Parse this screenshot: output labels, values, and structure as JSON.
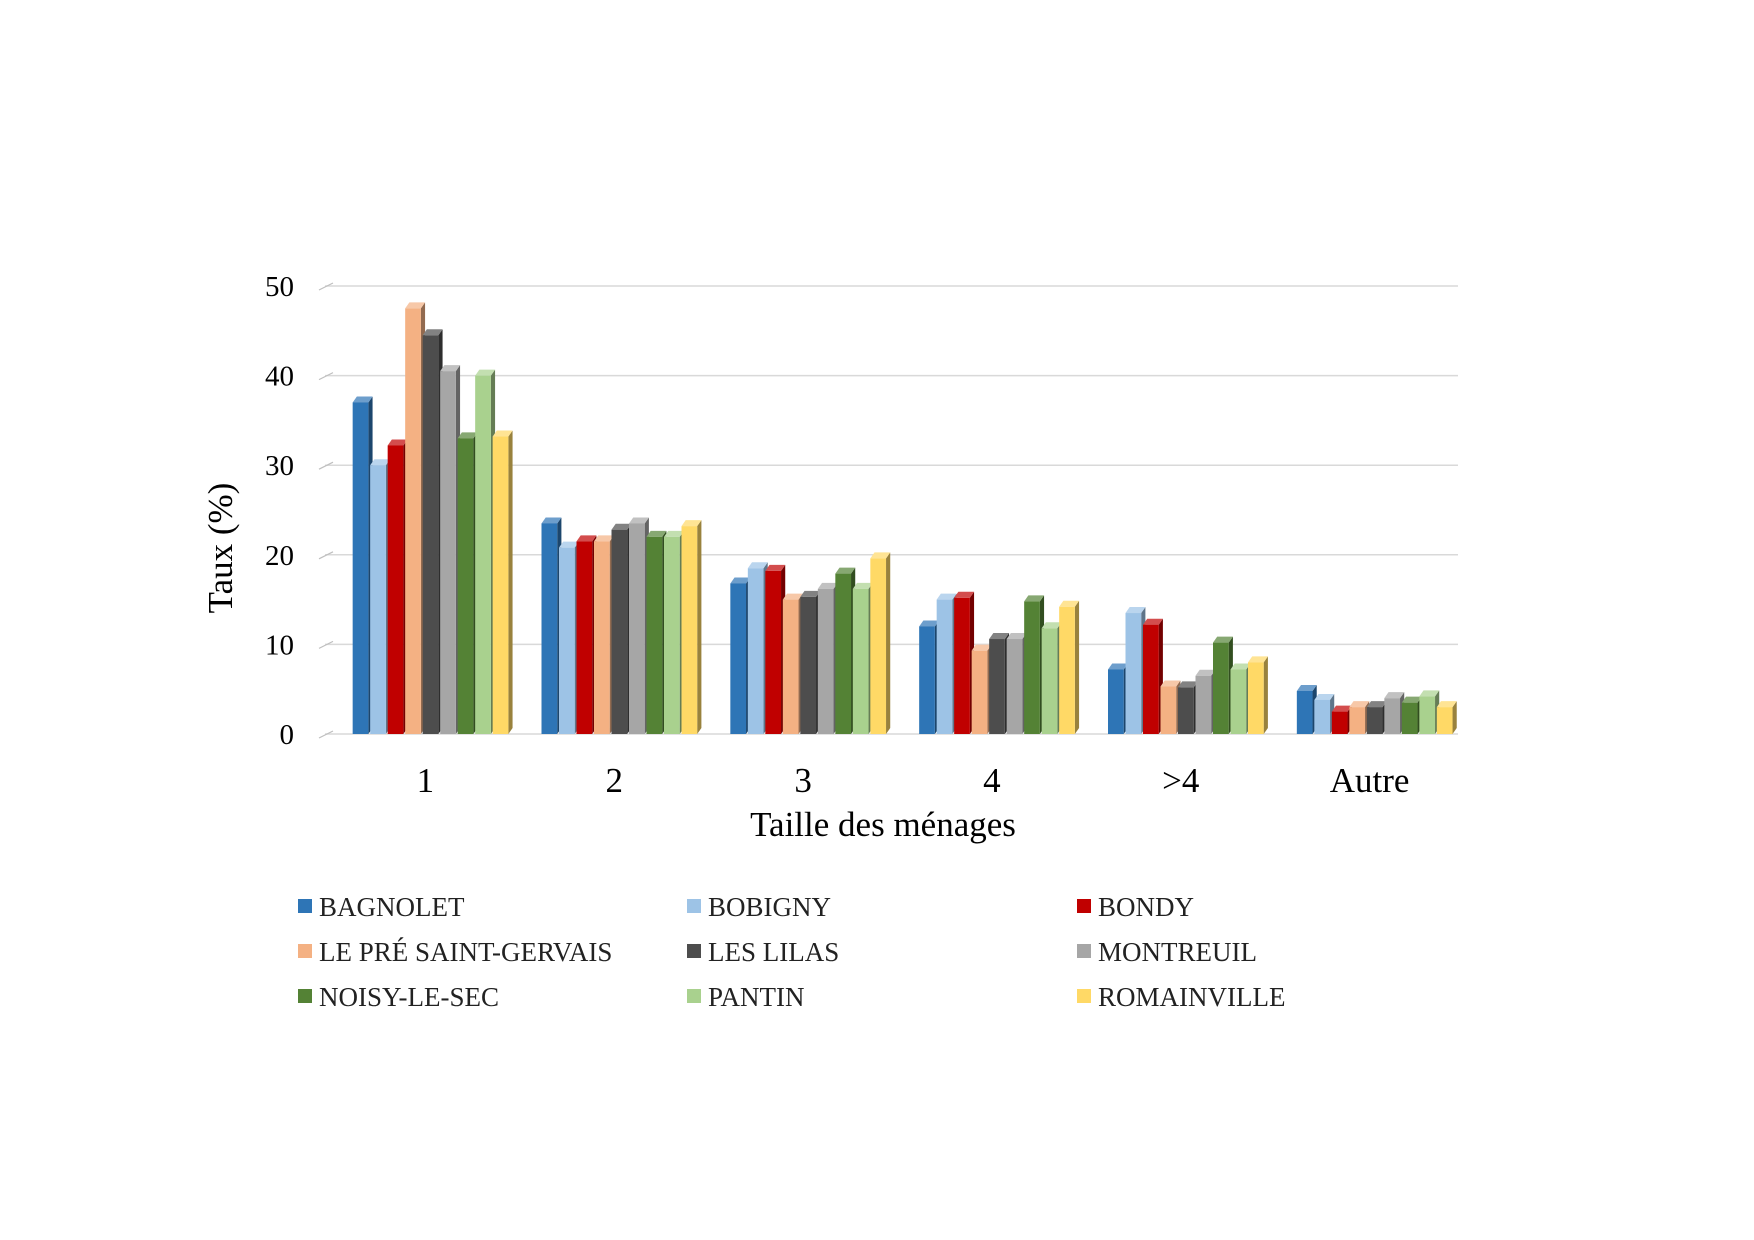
{
  "chart_data": {
    "type": "bar",
    "xlabel": "Taille des ménages",
    "ylabel": "Taux (%)",
    "ylim": [
      0,
      50
    ],
    "yticks": [
      "0",
      "10",
      "20",
      "30",
      "40",
      "50"
    ],
    "grid": true,
    "legend_position": "bottom",
    "categories": [
      "1",
      "2",
      "3",
      "4",
      ">4",
      "Autre"
    ],
    "series": [
      {
        "name": "BAGNOLET",
        "color": "#2E75B6",
        "values": [
          37,
          23.5,
          16.8,
          12,
          7.2,
          4.8
        ]
      },
      {
        "name": "BOBIGNY",
        "color": "#9DC3E6",
        "values": [
          30,
          20.8,
          18.5,
          15,
          13.5,
          3.8
        ]
      },
      {
        "name": "BONDY",
        "color": "#C00000",
        "values": [
          32.2,
          21.5,
          18.2,
          15.2,
          12.2,
          2.5
        ]
      },
      {
        "name": "LE PRÉ SAINT-GERVAIS",
        "color": "#F4B183",
        "values": [
          47.5,
          21.5,
          15,
          9.3,
          5.3,
          3
        ]
      },
      {
        "name": "LES LILAS",
        "color": "#4D4D4D",
        "values": [
          44.5,
          22.8,
          15.3,
          10.6,
          5.2,
          3
        ]
      },
      {
        "name": "MONTREUIL",
        "color": "#A6A6A6",
        "values": [
          40.5,
          23.5,
          16.2,
          10.6,
          6.5,
          4
        ]
      },
      {
        "name": "NOISY-LE-SEC",
        "color": "#548235",
        "values": [
          33,
          22,
          17.9,
          14.8,
          10.2,
          3.5
        ]
      },
      {
        "name": "PANTIN",
        "color": "#A9D18E",
        "values": [
          40,
          22,
          16.2,
          11.8,
          7.2,
          4.2
        ]
      },
      {
        "name": "ROMAINVILLE",
        "color": "#FFD966",
        "values": [
          33.2,
          23.2,
          19.6,
          14.2,
          8,
          3
        ]
      }
    ]
  }
}
